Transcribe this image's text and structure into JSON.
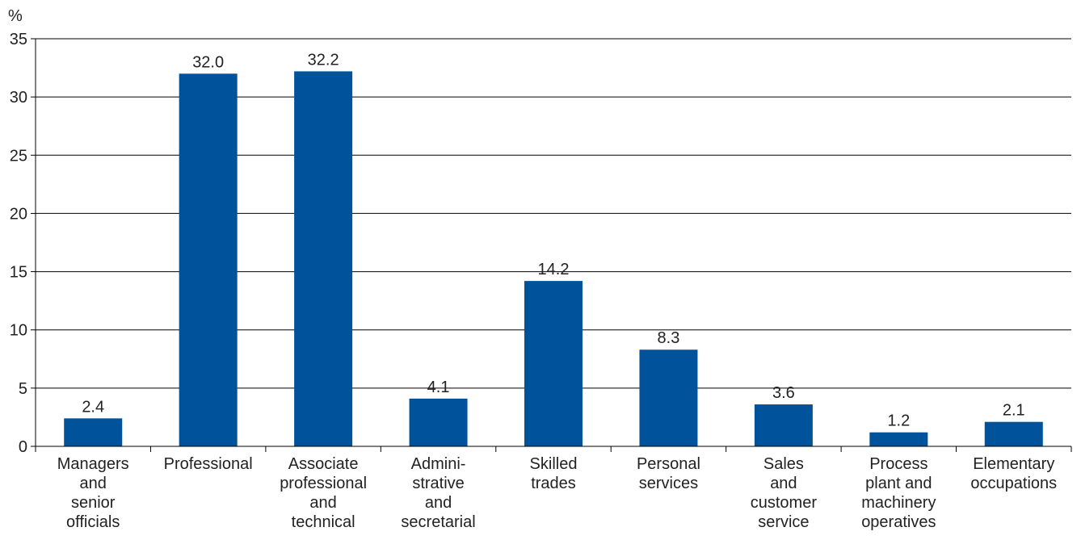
{
  "chart_data": {
    "type": "bar",
    "ylabel": "%",
    "ylim": [
      0,
      35
    ],
    "yticks": [
      0,
      5,
      10,
      15,
      20,
      25,
      30,
      35
    ],
    "grid": true,
    "bar_color": "#00539b",
    "categories": [
      [
        "Managers",
        "and",
        "senior",
        "officials"
      ],
      [
        "Professional"
      ],
      [
        "Associate",
        "professional",
        "and",
        "technical"
      ],
      [
        "Admini-",
        "strative",
        "and",
        "secretarial"
      ],
      [
        "Skilled",
        "trades"
      ],
      [
        "Personal",
        "services"
      ],
      [
        "Sales",
        "and",
        "customer",
        "service"
      ],
      [
        "Process",
        "plant and",
        "machinery",
        "operatives"
      ],
      [
        "Elementary",
        "occupations"
      ]
    ],
    "values": [
      2.4,
      32.0,
      32.2,
      4.1,
      14.2,
      8.3,
      3.6,
      1.2,
      2.1
    ],
    "data_labels": [
      "2.4",
      "32.0",
      "32.2",
      "4.1",
      "14.2",
      "8.3",
      "3.6",
      "1.2",
      "2.1"
    ]
  }
}
